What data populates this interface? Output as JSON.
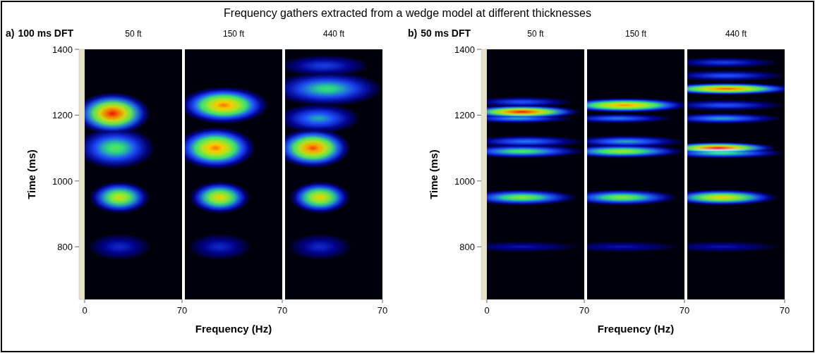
{
  "title": "Frequency gathers extracted from a wedge model at different thicknesses",
  "chart_data": [
    {
      "type": "heatmap",
      "label": "a)",
      "title": "100 ms DFT",
      "x_label": "Frequency (Hz)",
      "y_label": "Time (ms)",
      "ylim": [
        640,
        1400
      ],
      "yticks": [
        800,
        1000,
        1200,
        1400
      ],
      "panels": [
        {
          "title": "50 ft",
          "xlim": [
            0,
            70
          ],
          "xticks": [
            0,
            70
          ],
          "blobs": [
            {
              "time": 800,
              "frequency": 25,
              "intensity": 0.3,
              "time_spread": 22,
              "frequency_spread": 14
            },
            {
              "time": 950,
              "frequency": 25,
              "intensity": 0.78,
              "time_spread": 26,
              "frequency_spread": 13
            },
            {
              "time": 1100,
              "frequency": 22,
              "intensity": 0.62,
              "time_spread": 34,
              "frequency_spread": 17
            },
            {
              "time": 1205,
              "frequency": 20,
              "intensity": 1.0,
              "time_spread": 34,
              "frequency_spread": 16
            }
          ]
        },
        {
          "title": "150 ft",
          "xlim": [
            0,
            70
          ],
          "xticks": [
            70
          ],
          "blobs": [
            {
              "time": 800,
              "frequency": 25,
              "intensity": 0.3,
              "time_spread": 22,
              "frequency_spread": 14
            },
            {
              "time": 950,
              "frequency": 25,
              "intensity": 0.82,
              "time_spread": 26,
              "frequency_spread": 13
            },
            {
              "time": 1100,
              "frequency": 22,
              "intensity": 0.92,
              "time_spread": 34,
              "frequency_spread": 17
            },
            {
              "time": 1230,
              "frequency": 28,
              "intensity": 0.92,
              "time_spread": 30,
              "frequency_spread": 19
            }
          ]
        },
        {
          "title": "440 ft",
          "xlim": [
            0,
            70
          ],
          "xticks": [
            70
          ],
          "blobs": [
            {
              "time": 800,
              "frequency": 25,
              "intensity": 0.3,
              "time_spread": 22,
              "frequency_spread": 14
            },
            {
              "time": 950,
              "frequency": 25,
              "intensity": 0.82,
              "time_spread": 26,
              "frequency_spread": 13
            },
            {
              "time": 1100,
              "frequency": 20,
              "intensity": 0.96,
              "time_spread": 32,
              "frequency_spread": 16
            },
            {
              "time": 1190,
              "frequency": 24,
              "intensity": 0.5,
              "time_spread": 24,
              "frequency_spread": 18
            },
            {
              "time": 1280,
              "frequency": 30,
              "intensity": 0.58,
              "time_spread": 28,
              "frequency_spread": 24
            },
            {
              "time": 1350,
              "frequency": 28,
              "intensity": 0.35,
              "time_spread": 18,
              "frequency_spread": 20
            }
          ]
        }
      ]
    },
    {
      "type": "heatmap",
      "label": "b)",
      "title": "50 ms DFT",
      "x_label": "Frequency (Hz)",
      "y_label": "Time (ms)",
      "ylim": [
        640,
        1400
      ],
      "yticks": [
        800,
        1000,
        1200,
        1400
      ],
      "panels": [
        {
          "title": "50 ft",
          "xlim": [
            0,
            70
          ],
          "xticks": [
            0,
            70
          ],
          "blobs": [
            {
              "time": 800,
              "frequency": 25,
              "intensity": 0.25,
              "time_spread": 9,
              "frequency_spread": 26
            },
            {
              "time": 950,
              "frequency": 25,
              "intensity": 0.68,
              "time_spread": 13,
              "frequency_spread": 24
            },
            {
              "time": 1090,
              "frequency": 25,
              "intensity": 0.62,
              "time_spread": 11,
              "frequency_spread": 27
            },
            {
              "time": 1120,
              "frequency": 28,
              "intensity": 0.45,
              "time_spread": 10,
              "frequency_spread": 25
            },
            {
              "time": 1190,
              "frequency": 22,
              "intensity": 0.5,
              "time_spread": 8,
              "frequency_spread": 24
            },
            {
              "time": 1210,
              "frequency": 25,
              "intensity": 1.0,
              "time_spread": 11,
              "frequency_spread": 25
            },
            {
              "time": 1240,
              "frequency": 25,
              "intensity": 0.4,
              "time_spread": 9,
              "frequency_spread": 22
            }
          ]
        },
        {
          "title": "150 ft",
          "xlim": [
            0,
            70
          ],
          "xticks": [
            70
          ],
          "blobs": [
            {
              "time": 800,
              "frequency": 25,
              "intensity": 0.25,
              "time_spread": 9,
              "frequency_spread": 26
            },
            {
              "time": 950,
              "frequency": 25,
              "intensity": 0.68,
              "time_spread": 13,
              "frequency_spread": 24
            },
            {
              "time": 1090,
              "frequency": 25,
              "intensity": 0.72,
              "time_spread": 11,
              "frequency_spread": 27
            },
            {
              "time": 1120,
              "frequency": 28,
              "intensity": 0.5,
              "time_spread": 10,
              "frequency_spread": 25
            },
            {
              "time": 1190,
              "frequency": 22,
              "intensity": 0.45,
              "time_spread": 8,
              "frequency_spread": 24
            },
            {
              "time": 1230,
              "frequency": 27,
              "intensity": 0.9,
              "time_spread": 12,
              "frequency_spread": 28
            }
          ]
        },
        {
          "title": "440 ft",
          "xlim": [
            0,
            70
          ],
          "xticks": [
            70
          ],
          "blobs": [
            {
              "time": 800,
              "frequency": 25,
              "intensity": 0.25,
              "time_spread": 9,
              "frequency_spread": 26
            },
            {
              "time": 950,
              "frequency": 25,
              "intensity": 0.82,
              "time_spread": 13,
              "frequency_spread": 24
            },
            {
              "time": 1085,
              "frequency": 25,
              "intensity": 0.6,
              "time_spread": 9,
              "frequency_spread": 27
            },
            {
              "time": 1100,
              "frequency": 22,
              "intensity": 1.0,
              "time_spread": 10,
              "frequency_spread": 25
            },
            {
              "time": 1190,
              "frequency": 25,
              "intensity": 0.5,
              "time_spread": 9,
              "frequency_spread": 26
            },
            {
              "time": 1230,
              "frequency": 27,
              "intensity": 0.4,
              "time_spread": 9,
              "frequency_spread": 26
            },
            {
              "time": 1280,
              "frequency": 28,
              "intensity": 0.95,
              "time_spread": 10,
              "frequency_spread": 30
            },
            {
              "time": 1320,
              "frequency": 28,
              "intensity": 0.4,
              "time_spread": 9,
              "frequency_spread": 26
            },
            {
              "time": 1360,
              "frequency": 26,
              "intensity": 0.35,
              "time_spread": 9,
              "frequency_spread": 24
            }
          ]
        }
      ]
    }
  ]
}
